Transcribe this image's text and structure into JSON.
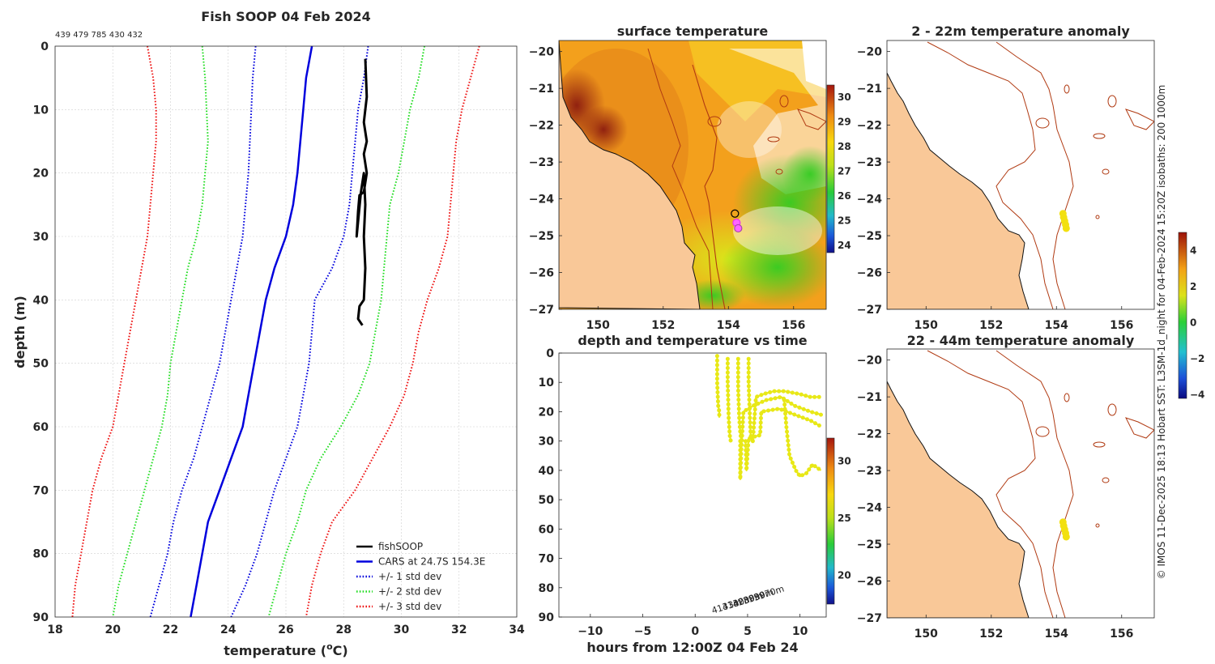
{
  "figure": {
    "credit": "© IMOS 11-Dec-2025 18:13 Hobart SST: L3SM-1d_night for 04-Feb-2024 15:20Z isobaths: 200  1000m"
  },
  "chart_data": [
    {
      "id": "profile",
      "type": "line",
      "title": "Fish SOOP 04 Feb 2024",
      "subtitle": "439 479 785 430 432",
      "xlabel": "temperature (",
      "xlabel_sup": "o",
      "xlabel_end": "C)",
      "ylabel": "depth (m)",
      "xlim": [
        18,
        34
      ],
      "ylim": [
        90,
        0
      ],
      "y_reversed": true,
      "x_ticks": [
        18,
        20,
        22,
        24,
        26,
        28,
        30,
        32,
        34
      ],
      "y_ticks": [
        0,
        10,
        20,
        30,
        40,
        50,
        60,
        70,
        80,
        90
      ],
      "grid": true,
      "legend_position": "bottom-right",
      "series": [
        {
          "name": "fishSOOP",
          "color": "#000000",
          "style": "solid",
          "width": 3,
          "points": [
            [
              28.75,
              2
            ],
            [
              28.8,
              8
            ],
            [
              28.7,
              12
            ],
            [
              28.8,
              15
            ],
            [
              28.7,
              17
            ],
            [
              28.8,
              20
            ],
            [
              28.7,
              23
            ],
            [
              28.55,
              23.5
            ],
            [
              28.5,
              26
            ],
            [
              28.45,
              30
            ],
            [
              28.6,
              23
            ],
            [
              28.7,
              20
            ],
            [
              28.75,
              25
            ],
            [
              28.7,
              30
            ],
            [
              28.75,
              35
            ],
            [
              28.7,
              40
            ],
            [
              28.55,
              41
            ],
            [
              28.5,
              43
            ],
            [
              28.65,
              44
            ]
          ]
        },
        {
          "name": "CARS at 24.7S 154.3E",
          "color": "#0000dd",
          "style": "solid",
          "width": 2.5,
          "points": [
            [
              26.9,
              0
            ],
            [
              26.7,
              5
            ],
            [
              26.6,
              10
            ],
            [
              26.5,
              15
            ],
            [
              26.4,
              20
            ],
            [
              26.25,
              25
            ],
            [
              26.0,
              30
            ],
            [
              25.6,
              35
            ],
            [
              25.3,
              40
            ],
            [
              25.1,
              45
            ],
            [
              24.9,
              50
            ],
            [
              24.7,
              55
            ],
            [
              24.5,
              60
            ],
            [
              24.1,
              65
            ],
            [
              23.7,
              70
            ],
            [
              23.3,
              75
            ],
            [
              23.1,
              80
            ],
            [
              22.9,
              85
            ],
            [
              22.7,
              90
            ]
          ]
        },
        {
          "name": "+/- 1 std dev",
          "color": "#0000dd",
          "style": "dotted",
          "width": 2,
          "points": [
            [
              28.85,
              0
            ],
            [
              28.7,
              5
            ],
            [
              28.5,
              10
            ],
            [
              28.4,
              15
            ],
            [
              28.3,
              20
            ],
            [
              28.2,
              25
            ],
            [
              28.0,
              30
            ],
            [
              27.6,
              35
            ],
            [
              27.0,
              40
            ],
            [
              26.9,
              45
            ],
            [
              26.8,
              50
            ],
            [
              26.6,
              55
            ],
            [
              26.4,
              60
            ],
            [
              26.0,
              65
            ],
            [
              25.6,
              70
            ],
            [
              25.3,
              75
            ],
            [
              25.0,
              80
            ],
            [
              24.6,
              85
            ],
            [
              24.1,
              90
            ]
          ]
        },
        {
          "name": "+/- 1 std dev",
          "color": "#0000dd",
          "style": "dotted",
          "width": 2,
          "points": [
            [
              24.95,
              0
            ],
            [
              24.85,
              5
            ],
            [
              24.8,
              10
            ],
            [
              24.75,
              15
            ],
            [
              24.7,
              20
            ],
            [
              24.6,
              25
            ],
            [
              24.5,
              30
            ],
            [
              24.3,
              35
            ],
            [
              24.1,
              40
            ],
            [
              23.9,
              45
            ],
            [
              23.7,
              50
            ],
            [
              23.4,
              55
            ],
            [
              23.1,
              60
            ],
            [
              22.8,
              65
            ],
            [
              22.4,
              70
            ],
            [
              22.1,
              75
            ],
            [
              21.9,
              80
            ],
            [
              21.6,
              85
            ],
            [
              21.3,
              90
            ]
          ]
        },
        {
          "name": "+/- 2 std dev",
          "color": "#22dd22",
          "style": "dotted",
          "width": 2,
          "points": [
            [
              30.8,
              0
            ],
            [
              30.6,
              5
            ],
            [
              30.3,
              10
            ],
            [
              30.1,
              15
            ],
            [
              29.9,
              20
            ],
            [
              29.6,
              25
            ],
            [
              29.5,
              30
            ],
            [
              29.4,
              35
            ],
            [
              29.3,
              40
            ],
            [
              29.1,
              45
            ],
            [
              28.9,
              50
            ],
            [
              28.5,
              55
            ],
            [
              27.9,
              60
            ],
            [
              27.2,
              65
            ],
            [
              26.7,
              70
            ],
            [
              26.4,
              75
            ],
            [
              26.0,
              80
            ],
            [
              25.7,
              85
            ],
            [
              25.4,
              90
            ]
          ]
        },
        {
          "name": "+/- 2 std dev",
          "color": "#22dd22",
          "style": "dotted",
          "width": 2,
          "points": [
            [
              23.1,
              0
            ],
            [
              23.2,
              5
            ],
            [
              23.25,
              10
            ],
            [
              23.3,
              15
            ],
            [
              23.2,
              20
            ],
            [
              23.1,
              25
            ],
            [
              22.9,
              30
            ],
            [
              22.6,
              35
            ],
            [
              22.4,
              40
            ],
            [
              22.2,
              45
            ],
            [
              22.0,
              50
            ],
            [
              21.9,
              55
            ],
            [
              21.7,
              60
            ],
            [
              21.4,
              65
            ],
            [
              21.1,
              70
            ],
            [
              20.8,
              75
            ],
            [
              20.5,
              80
            ],
            [
              20.2,
              85
            ],
            [
              20.0,
              90
            ]
          ]
        },
        {
          "name": "+/- 3 std dev",
          "color": "#ee1111",
          "style": "dotted",
          "width": 2,
          "points": [
            [
              32.7,
              0
            ],
            [
              32.4,
              5
            ],
            [
              32.1,
              10
            ],
            [
              31.9,
              15
            ],
            [
              31.8,
              20
            ],
            [
              31.7,
              25
            ],
            [
              31.6,
              30
            ],
            [
              31.3,
              35
            ],
            [
              30.9,
              40
            ],
            [
              30.6,
              45
            ],
            [
              30.4,
              50
            ],
            [
              30.1,
              55
            ],
            [
              29.6,
              60
            ],
            [
              29.0,
              65
            ],
            [
              28.4,
              70
            ],
            [
              27.6,
              75
            ],
            [
              27.2,
              80
            ],
            [
              26.9,
              85
            ],
            [
              26.7,
              90
            ]
          ]
        },
        {
          "name": "+/- 3 std dev",
          "color": "#ee1111",
          "style": "dotted",
          "width": 2,
          "points": [
            [
              21.2,
              0
            ],
            [
              21.4,
              5
            ],
            [
              21.5,
              10
            ],
            [
              21.5,
              15
            ],
            [
              21.4,
              20
            ],
            [
              21.3,
              25
            ],
            [
              21.2,
              30
            ],
            [
              21.0,
              35
            ],
            [
              20.8,
              40
            ],
            [
              20.6,
              45
            ],
            [
              20.4,
              50
            ],
            [
              20.2,
              55
            ],
            [
              20.0,
              60
            ],
            [
              19.6,
              65
            ],
            [
              19.3,
              70
            ],
            [
              19.1,
              75
            ],
            [
              18.9,
              80
            ],
            [
              18.7,
              85
            ],
            [
              18.6,
              90
            ]
          ]
        }
      ],
      "legend": [
        {
          "label": "fishSOOP",
          "color": "#000000",
          "style": "solid"
        },
        {
          "label": "CARS at 24.7S 154.3E",
          "color": "#0000dd",
          "style": "solid"
        },
        {
          "label": "+/- 1 std dev",
          "color": "#0000dd",
          "style": "dotted"
        },
        {
          "label": "+/- 2 std dev",
          "color": "#22dd22",
          "style": "dotted"
        },
        {
          "label": "+/- 3 std dev",
          "color": "#ee1111",
          "style": "dotted"
        }
      ]
    },
    {
      "id": "sst_map",
      "type": "heatmap",
      "title": "surface temperature",
      "xlim": [
        148.8,
        157
      ],
      "ylim": [
        -27,
        -19.7
      ],
      "x_ticks": [
        150,
        152,
        154,
        156
      ],
      "y_ticks": [
        -20,
        -21,
        -22,
        -23,
        -24,
        -25,
        -26,
        -27
      ],
      "colorbar": {
        "range": [
          23.7,
          30.5
        ],
        "ticks": [
          24,
          25,
          26,
          27,
          28,
          29,
          30
        ]
      },
      "markers": [
        [
          154.2,
          -24.4
        ],
        [
          154.25,
          -24.65
        ],
        [
          154.3,
          -24.8
        ]
      ],
      "land_color": "#f9c898"
    },
    {
      "id": "anom_shallow",
      "type": "heatmap",
      "title": "2 - 22m temperature anomaly",
      "xlim": [
        148.8,
        157
      ],
      "ylim": [
        -27,
        -19.7
      ],
      "x_ticks": [
        150,
        152,
        154,
        156
      ],
      "y_ticks": [
        -20,
        -21,
        -22,
        -23,
        -24,
        -25,
        -26,
        -27
      ],
      "points": [
        [
          154.2,
          -24.4
        ],
        [
          154.22,
          -24.5
        ],
        [
          154.25,
          -24.6
        ],
        [
          154.28,
          -24.7
        ],
        [
          154.3,
          -24.8
        ]
      ],
      "point_color": "#f2e010",
      "land_color": "#f9c898"
    },
    {
      "id": "anom_deep",
      "type": "heatmap",
      "title": "22 - 44m temperature anomaly",
      "xlim": [
        148.8,
        157
      ],
      "ylim": [
        -27,
        -19.7
      ],
      "x_ticks": [
        150,
        152,
        154,
        156
      ],
      "y_ticks": [
        -20,
        -21,
        -22,
        -23,
        -24,
        -25,
        -26,
        -27
      ],
      "points": [
        [
          154.2,
          -24.4
        ],
        [
          154.22,
          -24.5
        ],
        [
          154.25,
          -24.6
        ],
        [
          154.28,
          -24.7
        ],
        [
          154.3,
          -24.8
        ]
      ],
      "point_color": "#f2e010",
      "land_color": "#f9c898"
    },
    {
      "id": "anom_colorbar",
      "type": "heatmap",
      "range": [
        -4.2,
        5
      ],
      "ticks": [
        4,
        2,
        0,
        -2,
        -4
      ]
    },
    {
      "id": "depth_time",
      "type": "scatter",
      "title": "depth and temperature vs time",
      "xlabel": "hours from 12:00Z 04 Feb 24",
      "xlim": [
        -13,
        12.5
      ],
      "ylim": [
        90,
        0
      ],
      "x_ticks": [
        -10,
        -5,
        0,
        5,
        10
      ],
      "y_ticks": [
        0,
        10,
        20,
        30,
        40,
        50,
        60,
        70,
        80,
        90
      ],
      "colorbar": {
        "range": [
          17.5,
          32
        ],
        "ticks": [
          20,
          25,
          30
        ]
      },
      "point_color": "#e8e817",
      "tracks": [
        [
          [
            2.1,
            1
          ],
          [
            2.1,
            10
          ],
          [
            2.2,
            18
          ],
          [
            2.3,
            20
          ],
          [
            2.3,
            22
          ]
        ],
        [
          [
            3.1,
            2
          ],
          [
            3.1,
            10
          ],
          [
            3.2,
            22
          ],
          [
            3.3,
            28
          ],
          [
            3.4,
            30
          ]
        ],
        [
          [
            4.1,
            2
          ],
          [
            4.1,
            12
          ],
          [
            4.2,
            22
          ],
          [
            4.3,
            27
          ],
          [
            4.4,
            30
          ]
        ],
        [
          [
            5.1,
            2
          ],
          [
            5.1,
            10
          ],
          [
            5.2,
            20
          ],
          [
            5.3,
            28
          ],
          [
            5.5,
            30
          ]
        ],
        [
          [
            5.5,
            30
          ],
          [
            5.8,
            15
          ],
          [
            6.5,
            14
          ],
          [
            7.5,
            13
          ],
          [
            8.5,
            13
          ],
          [
            10,
            14
          ],
          [
            11,
            15
          ],
          [
            12,
            15
          ]
        ],
        [
          [
            4.3,
            30
          ],
          [
            4.3,
            43
          ],
          [
            4.4,
            33
          ],
          [
            4.6,
            20
          ],
          [
            5.5,
            18
          ],
          [
            6.8,
            16
          ],
          [
            8.2,
            15
          ],
          [
            9.5,
            18
          ],
          [
            11,
            20
          ],
          [
            12,
            21
          ]
        ],
        [
          [
            4.8,
            30
          ],
          [
            4.9,
            40
          ],
          [
            5.1,
            29
          ],
          [
            6.2,
            28
          ],
          [
            6.3,
            20
          ],
          [
            8.0,
            19
          ],
          [
            9.5,
            21
          ],
          [
            11,
            23
          ],
          [
            12,
            25
          ]
        ],
        [
          [
            8.5,
            16
          ],
          [
            8.7,
            25
          ],
          [
            9.0,
            35
          ],
          [
            9.6,
            40
          ],
          [
            10,
            42
          ],
          [
            10.6,
            41
          ],
          [
            11.2,
            38
          ],
          [
            12,
            40
          ]
        ]
      ],
      "annotations": [
        "4133m",
        "4130m",
        "4280m",
        "3390m",
        "3970m"
      ]
    }
  ]
}
